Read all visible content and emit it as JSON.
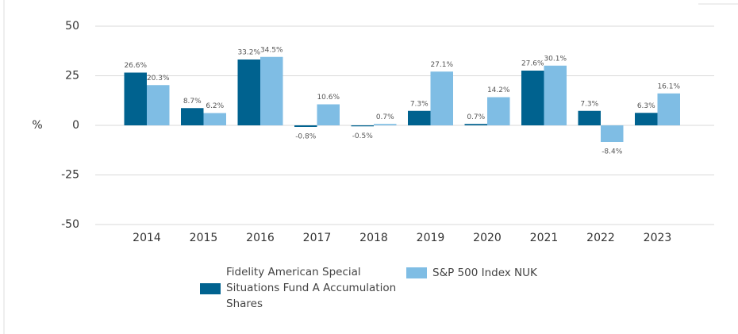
{
  "chart_data": {
    "type": "bar",
    "y_label": "%",
    "categories": [
      "2014",
      "2015",
      "2016",
      "2017",
      "2018",
      "2019",
      "2020",
      "2021",
      "2022",
      "2023"
    ],
    "series": [
      {
        "name": "Fidelity American Special Situations Fund A Accumulation Shares",
        "color": "#00628f",
        "values": [
          26.6,
          8.7,
          33.2,
          -0.8,
          -0.5,
          7.3,
          0.7,
          27.6,
          7.3,
          6.3
        ],
        "value_labels": [
          "26.6%",
          "8.7%",
          "33.2%",
          "-0.8%",
          "-0.5%",
          "7.3%",
          "0.7%",
          "27.6%",
          "7.3%",
          "6.3%"
        ]
      },
      {
        "name": "S&P 500 Index NUK",
        "color": "#7fbde4",
        "values": [
          20.3,
          6.2,
          34.5,
          10.6,
          0.7,
          27.1,
          14.2,
          30.1,
          -8.4,
          16.1
        ],
        "value_labels": [
          "20.3%",
          "6.2%",
          "34.5%",
          "10.6%",
          "0.7%",
          "27.1%",
          "14.2%",
          "30.1%",
          "-8.4%",
          "16.1%"
        ]
      }
    ],
    "ylim": [
      -50,
      50
    ],
    "yticks": [
      50,
      25,
      0,
      -25,
      -50
    ],
    "grid": true
  }
}
